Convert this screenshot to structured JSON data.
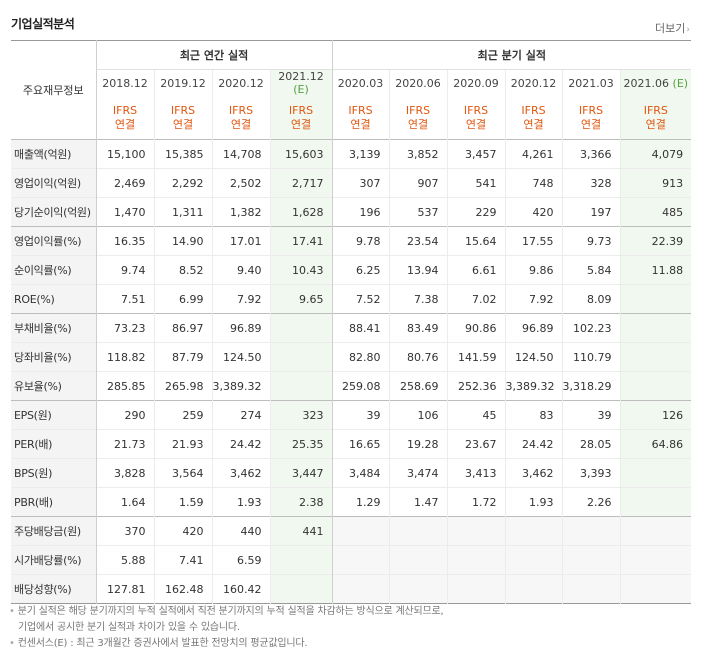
{
  "title": "기업실적분석",
  "more_label": "더보기",
  "header_label": "주요재무정보",
  "group_annual": "최근 연간 실적",
  "group_quarter": "최근 분기 실적",
  "annual_periods": [
    {
      "label": "2018.12",
      "est": ""
    },
    {
      "label": "2019.12",
      "est": ""
    },
    {
      "label": "2020.12",
      "est": ""
    },
    {
      "label": "2021.12",
      "est": "(E)"
    }
  ],
  "quarter_periods": [
    {
      "label": "2020.03",
      "est": ""
    },
    {
      "label": "2020.06",
      "est": ""
    },
    {
      "label": "2020.09",
      "est": ""
    },
    {
      "label": "2020.12",
      "est": ""
    },
    {
      "label": "2021.03",
      "est": ""
    },
    {
      "label": "2021.06",
      "est": "(E)"
    }
  ],
  "ifrs_line1": "IFRS",
  "ifrs_line2": "연결",
  "rows": [
    {
      "label": "매출액(억원)",
      "values": [
        "15,100",
        "15,385",
        "14,708",
        "15,603",
        "3,139",
        "3,852",
        "3,457",
        "4,261",
        "3,366",
        "4,079"
      ]
    },
    {
      "label": "영업이익(억원)",
      "values": [
        "2,469",
        "2,292",
        "2,502",
        "2,717",
        "307",
        "907",
        "541",
        "748",
        "328",
        "913"
      ]
    },
    {
      "label": "당기순이익(억원)",
      "values": [
        "1,470",
        "1,311",
        "1,382",
        "1,628",
        "196",
        "537",
        "229",
        "420",
        "197",
        "485"
      ]
    },
    {
      "label": "영업이익률(%)",
      "values": [
        "16.35",
        "14.90",
        "17.01",
        "17.41",
        "9.78",
        "23.54",
        "15.64",
        "17.55",
        "9.73",
        "22.39"
      ]
    },
    {
      "label": "순이익률(%)",
      "values": [
        "9.74",
        "8.52",
        "9.40",
        "10.43",
        "6.25",
        "13.94",
        "6.61",
        "9.86",
        "5.84",
        "11.88"
      ]
    },
    {
      "label": "ROE(%)",
      "values": [
        "7.51",
        "6.99",
        "7.92",
        "9.65",
        "7.52",
        "7.38",
        "7.02",
        "7.92",
        "8.09",
        ""
      ]
    },
    {
      "label": "부채비율(%)",
      "values": [
        "73.23",
        "86.97",
        "96.89",
        "",
        "88.41",
        "83.49",
        "90.86",
        "96.89",
        "102.23",
        ""
      ]
    },
    {
      "label": "당좌비율(%)",
      "values": [
        "118.82",
        "87.79",
        "124.50",
        "",
        "82.80",
        "80.76",
        "141.59",
        "124.50",
        "110.79",
        ""
      ]
    },
    {
      "label": "유보율(%)",
      "values": [
        "285.85",
        "265.98",
        "3,389.32",
        "",
        "259.08",
        "258.69",
        "252.36",
        "3,389.32",
        "3,318.29",
        ""
      ]
    },
    {
      "label": "EPS(원)",
      "values": [
        "290",
        "259",
        "274",
        "323",
        "39",
        "106",
        "45",
        "83",
        "39",
        "126"
      ]
    },
    {
      "label": "PER(배)",
      "values": [
        "21.73",
        "21.93",
        "24.42",
        "25.35",
        "16.65",
        "19.28",
        "23.67",
        "24.42",
        "28.05",
        "64.86"
      ]
    },
    {
      "label": "BPS(원)",
      "values": [
        "3,828",
        "3,564",
        "3,462",
        "3,447",
        "3,484",
        "3,474",
        "3,413",
        "3,462",
        "3,393",
        ""
      ]
    },
    {
      "label": "PBR(배)",
      "values": [
        "1.64",
        "1.59",
        "1.93",
        "2.38",
        "1.29",
        "1.47",
        "1.72",
        "1.93",
        "2.26",
        ""
      ]
    },
    {
      "label": "주당배당금(원)",
      "values": [
        "370",
        "420",
        "440",
        "441",
        "",
        "",
        "",
        "",
        "",
        ""
      ]
    },
    {
      "label": "시가배당률(%)",
      "values": [
        "5.88",
        "7.41",
        "6.59",
        "",
        "",
        "",
        "",
        "",
        "",
        ""
      ]
    },
    {
      "label": "배당성향(%)",
      "values": [
        "127.81",
        "162.48",
        "160.42",
        "",
        "",
        "",
        "",
        "",
        "",
        ""
      ]
    }
  ],
  "notes": [
    "분기 실적은 해당 분기까지의 누적 실적에서 직전 분기까지의 누적 실적을 차감하는 방식으로 계산되므로,",
    "기업에서 공시한 분기 실적과 차이가 있을 수 있습니다.",
    "컨센서스(E) : 최근 3개월간 증권사에서 발표한 전망치의 평균값입니다."
  ],
  "colors": {
    "ifrs": "#e2560f",
    "estimate_bg": "#f1f8ef",
    "estimate_mark": "#52a23f"
  }
}
